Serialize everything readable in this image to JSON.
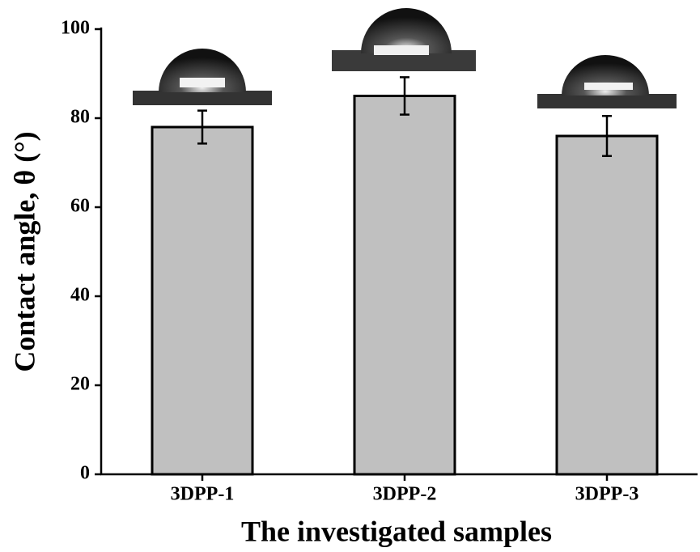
{
  "chart_data": {
    "type": "bar",
    "x_label": "The investigated samples",
    "y_label": "Contact angle, θ (°)",
    "categories": [
      "3DPP-1",
      "3DPP-2",
      "3DPP-3"
    ],
    "values": [
      78,
      85,
      76
    ],
    "errors": [
      3.7,
      4.2,
      4.5
    ],
    "color": "#c0c0c0",
    "ylim": [
      0,
      100
    ],
    "yticks": [
      0,
      20,
      40,
      60,
      80,
      100
    ],
    "grid": false
  }
}
